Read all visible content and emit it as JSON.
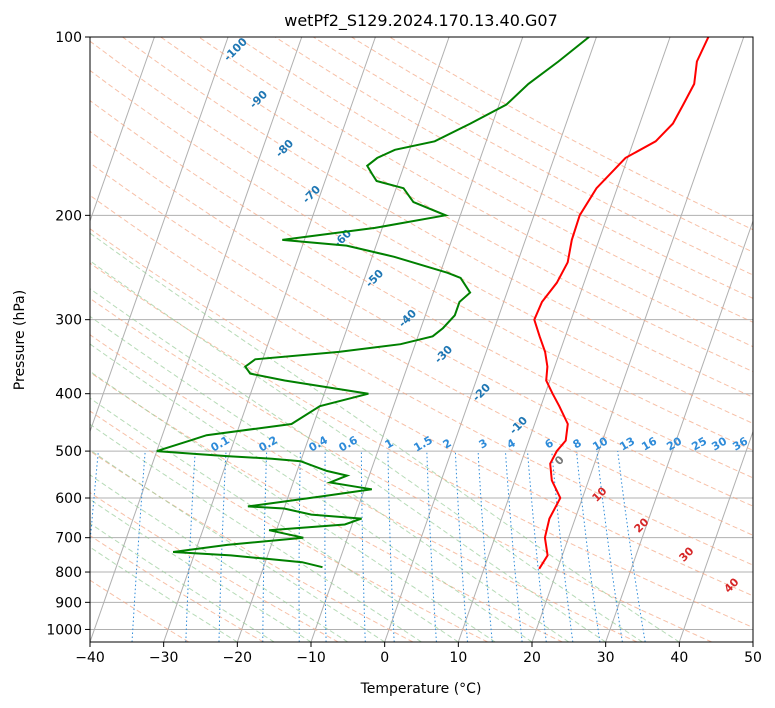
{
  "chart_data": {
    "type": "line",
    "title": "wetPf2_S129.2024.170.13.40.G07",
    "xlabel": "Temperature (°C)",
    "ylabel": "Pressure (hPa)",
    "xlim": [
      -40,
      50
    ],
    "ylim": [
      1050,
      100
    ],
    "y_scale": "log",
    "x_ticks": [
      "−40",
      "−30",
      "−20",
      "−10",
      "0",
      "10",
      "20",
      "30",
      "40",
      "50"
    ],
    "y_ticks": [
      "1000",
      "900",
      "800",
      "700",
      "600",
      "500",
      "400",
      "300",
      "200",
      "100"
    ],
    "grid": true,
    "series": [
      {
        "color": "#ff0000",
        "p": [
          790,
          750,
          700,
          650,
          600,
          560,
          525,
          500,
          480,
          450,
          420,
          400,
          380,
          360,
          340,
          320,
          300,
          280,
          260,
          240,
          220,
          200,
          180,
          160,
          150,
          140,
          130,
          120,
          110,
          100
        ],
        "t": [
          17.5,
          18,
          16.8,
          16.5,
          17,
          15,
          14,
          14.3,
          15,
          14.5,
          12.5,
          11,
          9.5,
          9,
          8,
          6.5,
          5,
          5.2,
          6.3,
          6.8,
          6.3,
          6.2,
          7.2,
          9.7,
          13,
          14.5,
          15,
          15.5,
          14.8,
          15.2
        ]
      },
      {
        "color": "#008000",
        "p": [
          785,
          770,
          760,
          750,
          740,
          720,
          700,
          680,
          665,
          650,
          640,
          625,
          620,
          610,
          595,
          580,
          565,
          550,
          540,
          530,
          520,
          515,
          510,
          505,
          500,
          480,
          470,
          450,
          420,
          400,
          380,
          370,
          360,
          350,
          340,
          330,
          320,
          310,
          295,
          280,
          270,
          255,
          250,
          235,
          225,
          220,
          210,
          200,
          190,
          180,
          175,
          170,
          165,
          160,
          155,
          150,
          140,
          130,
          120,
          110,
          100
        ]
      },
      {
        "color": "#008000",
        "td": [
          -12,
          -15,
          -20,
          -25,
          -33,
          -26,
          -16,
          -21,
          -11,
          -9,
          -16,
          -20,
          -25,
          -21,
          -15,
          -9,
          -15,
          -13,
          -16,
          -18,
          -20,
          -24,
          -30,
          -35,
          -40,
          -36,
          -34,
          -23,
          -20,
          -14,
          -26,
          -31,
          -32,
          -31,
          -20,
          -12,
          -8,
          -7,
          -6,
          -6,
          -5,
          -7,
          -9,
          -17,
          -24,
          -33,
          -21,
          -12,
          -17,
          -19,
          -23,
          -24,
          -25,
          -24,
          -22,
          -17,
          -13,
          -9,
          -7,
          -4,
          -1
        ]
      }
    ],
    "dry_adiabat_labels": [
      "-100",
      "-90",
      "-80",
      "-70",
      "-60",
      "-50",
      "-40",
      "-30",
      "-20",
      "-10",
      "0",
      "10",
      "20",
      "30",
      "40"
    ],
    "mixing_ratio_labels": [
      "0.1",
      "0.2",
      "0.4",
      "0.6",
      "1",
      "1.5",
      "2",
      "3",
      "4",
      "6",
      "8",
      "10",
      "13",
      "16",
      "20",
      "25",
      "30",
      "36"
    ]
  }
}
